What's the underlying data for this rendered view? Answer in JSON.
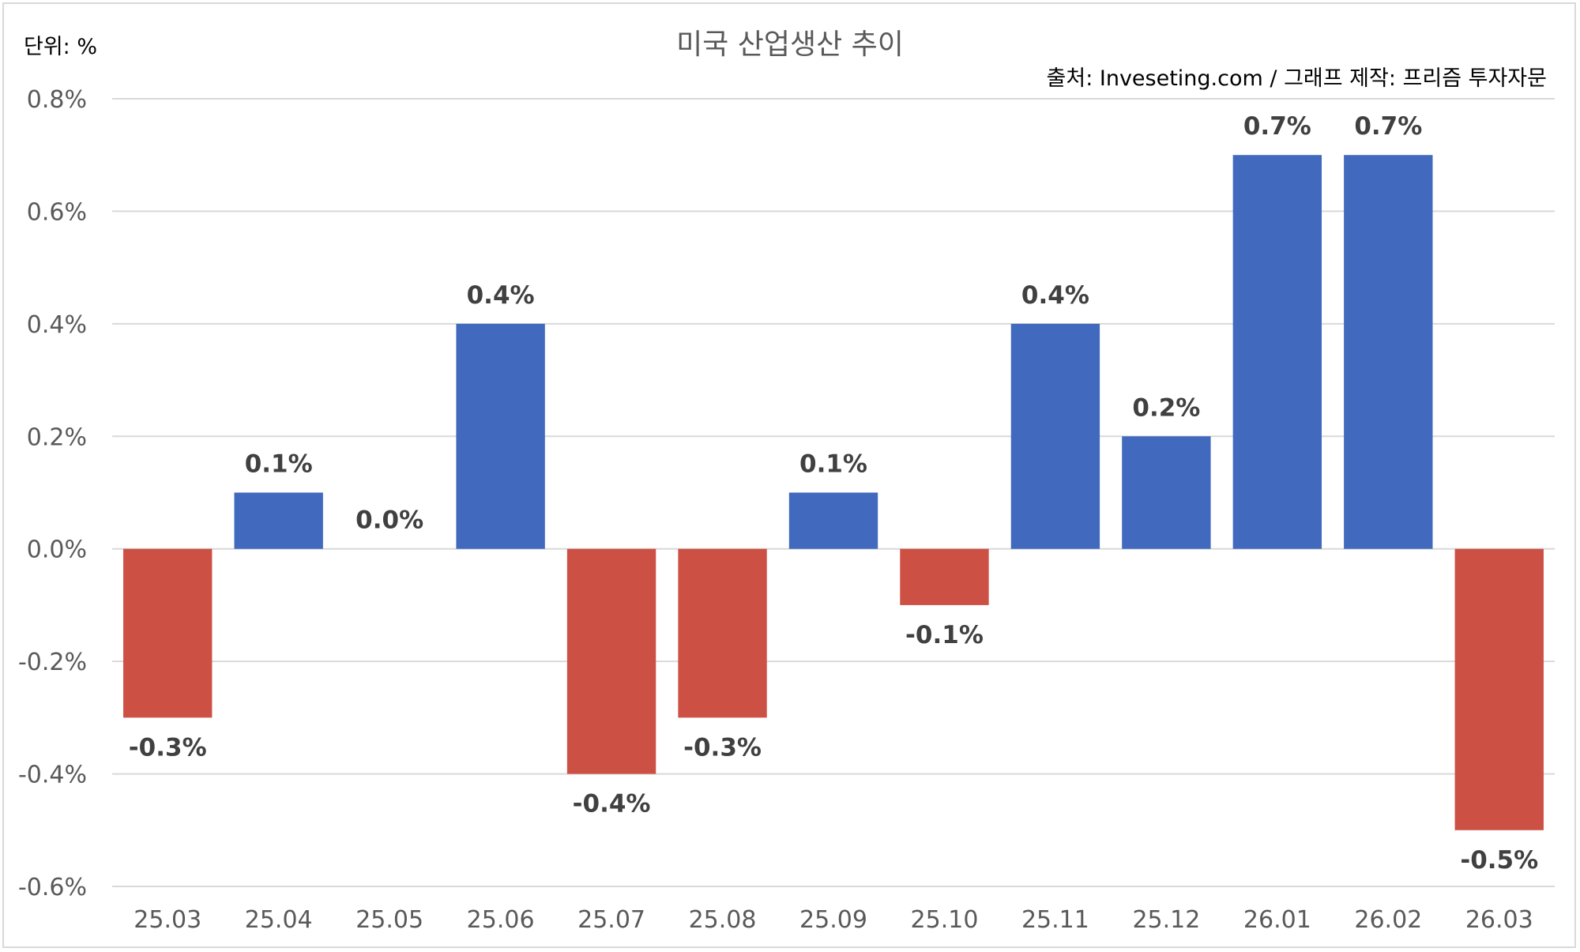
{
  "chart_data": {
    "type": "bar",
    "title": "미국 산업생산 추이",
    "unit_label": "단위: %",
    "source": "출처: Inveseting.com / 그래프 제작: 프리즘 투자자문",
    "categories": [
      "25.03",
      "25.04",
      "25.05",
      "25.06",
      "25.07",
      "25.08",
      "25.09",
      "25.10",
      "25.11",
      "25.12",
      "26.01",
      "26.02",
      "26.03"
    ],
    "values": [
      -0.3,
      0.1,
      0.0,
      0.4,
      -0.4,
      -0.3,
      0.1,
      -0.1,
      0.4,
      0.2,
      0.7,
      0.7,
      -0.5
    ],
    "data_labels": [
      "-0.3%",
      "0.1%",
      "0.0%",
      "0.4%",
      "-0.4%",
      "-0.3%",
      "0.1%",
      "-0.1%",
      "0.4%",
      "0.2%",
      "0.7%",
      "0.7%",
      "-0.5%"
    ],
    "ylim": [
      -0.6,
      0.8
    ],
    "yticks": [
      0.8,
      0.6,
      0.4,
      0.2,
      0.0,
      -0.2,
      -0.4,
      -0.6
    ],
    "ytick_labels": [
      "0.8%",
      "0.6%",
      "0.4%",
      "0.2%",
      "0.0%",
      "-0.2%",
      "-0.4%",
      "-0.6%"
    ],
    "grid": true,
    "legend": "none",
    "colors": {
      "positive": "#4169BD",
      "negative": "#CD5045"
    }
  }
}
